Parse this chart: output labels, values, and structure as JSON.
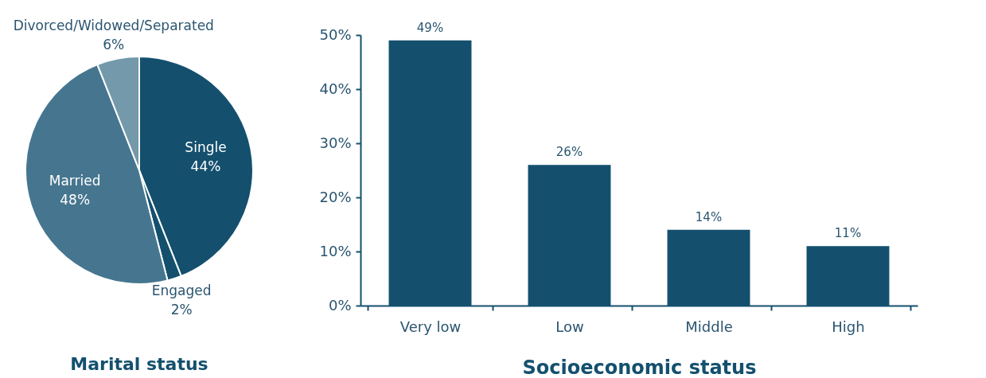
{
  "chart_data": [
    {
      "type": "pie",
      "title": "Marital status",
      "categories": [
        "Single",
        "Engaged",
        "Married",
        "Divorced/Widowed/Separated"
      ],
      "values": [
        44,
        2,
        48,
        6
      ],
      "colors": [
        "#14506e",
        "#14506e",
        "#46768f",
        "#7399ab"
      ],
      "value_labels": [
        "44%",
        "2%",
        "48%",
        "6%"
      ]
    },
    {
      "type": "bar",
      "xlabel": "Socioeconomic status",
      "categories": [
        "Very low",
        "Low",
        "Middle",
        "High"
      ],
      "values": [
        49,
        26,
        14,
        11
      ],
      "color": "#14506e",
      "value_labels": [
        "49%",
        "26%",
        "14%",
        "11%"
      ],
      "ylim": [
        0,
        50
      ],
      "yticks": [
        {
          "value": 0,
          "label": "0%"
        },
        {
          "value": 10,
          "label": "10%"
        },
        {
          "value": 20,
          "label": "20%"
        },
        {
          "value": 30,
          "label": "30%"
        },
        {
          "value": 40,
          "label": "40%"
        },
        {
          "value": 50,
          "label": "50%"
        }
      ],
      "grid": false
    }
  ]
}
